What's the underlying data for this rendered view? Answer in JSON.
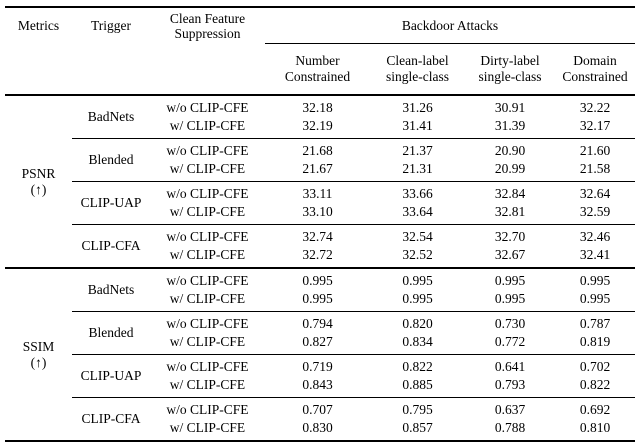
{
  "table": {
    "header": {
      "metrics": "Metrics",
      "trigger": "Trigger",
      "suppression_line1": "Clean Feature",
      "suppression_line2": "Suppression",
      "attacks_group": "Backdoor Attacks",
      "attack_columns": [
        {
          "line1": "Number",
          "line2": "Constrained"
        },
        {
          "line1": "Clean-label",
          "line2": "single-class"
        },
        {
          "line1": "Dirty-label",
          "line2": "single-class"
        },
        {
          "line1": "Domain",
          "line2": "Constrained"
        }
      ]
    },
    "sections": [
      {
        "metric": "PSNR",
        "arrow": "(↑)",
        "groups": [
          {
            "trigger": "BadNets",
            "rows": [
              {
                "suppression": "w/o CLIP-CFE",
                "values": [
                  "32.18",
                  "31.26",
                  "30.91",
                  "32.22"
                ]
              },
              {
                "suppression": "w/ CLIP-CFE",
                "values": [
                  "32.19",
                  "31.41",
                  "31.39",
                  "32.17"
                ]
              }
            ]
          },
          {
            "trigger": "Blended",
            "rows": [
              {
                "suppression": "w/o CLIP-CFE",
                "values": [
                  "21.68",
                  "21.37",
                  "20.90",
                  "21.60"
                ]
              },
              {
                "suppression": "w/ CLIP-CFE",
                "values": [
                  "21.67",
                  "21.31",
                  "20.99",
                  "21.58"
                ]
              }
            ]
          },
          {
            "trigger": "CLIP-UAP",
            "rows": [
              {
                "suppression": "w/o CLIP-CFE",
                "values": [
                  "33.11",
                  "33.66",
                  "32.84",
                  "32.64"
                ]
              },
              {
                "suppression": "w/ CLIP-CFE",
                "values": [
                  "33.10",
                  "33.64",
                  "32.81",
                  "32.59"
                ]
              }
            ]
          },
          {
            "trigger": "CLIP-CFA",
            "rows": [
              {
                "suppression": "w/o CLIP-CFE",
                "values": [
                  "32.74",
                  "32.54",
                  "32.70",
                  "32.46"
                ]
              },
              {
                "suppression": "w/ CLIP-CFE",
                "values": [
                  "32.72",
                  "32.52",
                  "32.67",
                  "32.41"
                ]
              }
            ]
          }
        ]
      },
      {
        "metric": "SSIM",
        "arrow": "(↑)",
        "groups": [
          {
            "trigger": "BadNets",
            "rows": [
              {
                "suppression": "w/o CLIP-CFE",
                "values": [
                  "0.995",
                  "0.995",
                  "0.995",
                  "0.995"
                ]
              },
              {
                "suppression": "w/ CLIP-CFE",
                "values": [
                  "0.995",
                  "0.995",
                  "0.995",
                  "0.995"
                ]
              }
            ]
          },
          {
            "trigger": "Blended",
            "rows": [
              {
                "suppression": "w/o CLIP-CFE",
                "values": [
                  "0.794",
                  "0.820",
                  "0.730",
                  "0.787"
                ]
              },
              {
                "suppression": "w/ CLIP-CFE",
                "values": [
                  "0.827",
                  "0.834",
                  "0.772",
                  "0.819"
                ]
              }
            ]
          },
          {
            "trigger": "CLIP-UAP",
            "rows": [
              {
                "suppression": "w/o CLIP-CFE",
                "values": [
                  "0.719",
                  "0.822",
                  "0.641",
                  "0.702"
                ]
              },
              {
                "suppression": "w/ CLIP-CFE",
                "values": [
                  "0.843",
                  "0.885",
                  "0.793",
                  "0.822"
                ]
              }
            ]
          },
          {
            "trigger": "CLIP-CFA",
            "rows": [
              {
                "suppression": "w/o CLIP-CFE",
                "values": [
                  "0.707",
                  "0.795",
                  "0.637",
                  "0.692"
                ]
              },
              {
                "suppression": "w/ CLIP-CFE",
                "values": [
                  "0.830",
                  "0.857",
                  "0.788",
                  "0.810"
                ]
              }
            ]
          }
        ]
      }
    ]
  }
}
